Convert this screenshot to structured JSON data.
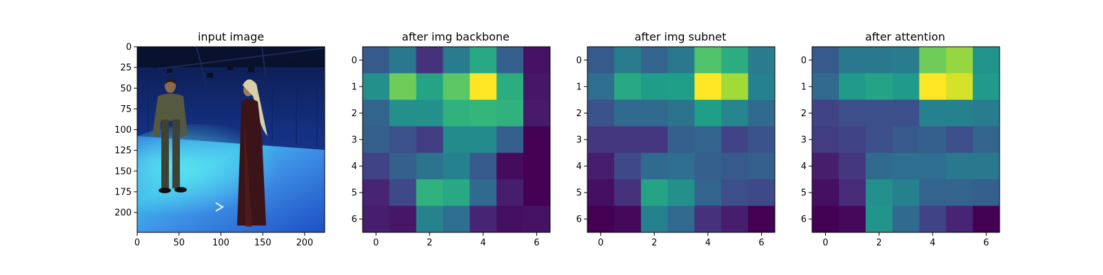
{
  "chart_data": [
    {
      "type": "image",
      "title": "input image",
      "image": "photo-two-people-blue-studio",
      "xticks": [
        0,
        50,
        100,
        150,
        200
      ],
      "yticks": [
        0,
        25,
        50,
        75,
        100,
        125,
        150,
        175,
        200
      ],
      "xlim": [
        0,
        224
      ],
      "ylim": [
        224,
        0
      ]
    },
    {
      "type": "heatmap",
      "title": "after img backbone",
      "colormap": "viridis",
      "xticks": [
        0,
        2,
        4,
        6
      ],
      "yticks": [
        0,
        1,
        2,
        3,
        4,
        5,
        6
      ],
      "values": [
        [
          0.28,
          0.4,
          0.14,
          0.42,
          0.6,
          0.3,
          0.05
        ],
        [
          0.5,
          0.78,
          0.58,
          0.74,
          1.0,
          0.62,
          0.06
        ],
        [
          0.32,
          0.5,
          0.5,
          0.64,
          0.66,
          0.64,
          0.07
        ],
        [
          0.3,
          0.25,
          0.18,
          0.48,
          0.48,
          0.3,
          0.0
        ],
        [
          0.2,
          0.3,
          0.38,
          0.44,
          0.28,
          0.03,
          0.0
        ],
        [
          0.1,
          0.22,
          0.64,
          0.6,
          0.34,
          0.08,
          0.0
        ],
        [
          0.08,
          0.06,
          0.45,
          0.36,
          0.1,
          0.04,
          0.05
        ]
      ]
    },
    {
      "type": "heatmap",
      "title": "after img subnet",
      "colormap": "viridis",
      "xticks": [
        0,
        2,
        4,
        6
      ],
      "yticks": [
        0,
        1,
        2,
        3,
        4,
        5,
        6
      ],
      "values": [
        [
          0.28,
          0.42,
          0.32,
          0.4,
          0.72,
          0.62,
          0.42
        ],
        [
          0.36,
          0.6,
          0.55,
          0.56,
          1.0,
          0.86,
          0.44
        ],
        [
          0.25,
          0.34,
          0.34,
          0.38,
          0.56,
          0.46,
          0.34
        ],
        [
          0.16,
          0.16,
          0.16,
          0.3,
          0.32,
          0.2,
          0.26
        ],
        [
          0.08,
          0.22,
          0.34,
          0.36,
          0.3,
          0.28,
          0.3
        ],
        [
          0.04,
          0.14,
          0.58,
          0.5,
          0.32,
          0.24,
          0.22
        ],
        [
          0.0,
          0.02,
          0.44,
          0.34,
          0.14,
          0.08,
          0.0
        ]
      ]
    },
    {
      "type": "heatmap",
      "title": "after attention",
      "colormap": "viridis",
      "xticks": [
        0,
        2,
        4,
        6
      ],
      "yticks": [
        0,
        1,
        2,
        3,
        4,
        5,
        6
      ],
      "values": [
        [
          0.28,
          0.4,
          0.4,
          0.42,
          0.78,
          0.84,
          0.52
        ],
        [
          0.34,
          0.54,
          0.58,
          0.54,
          1.0,
          0.94,
          0.54
        ],
        [
          0.2,
          0.24,
          0.24,
          0.24,
          0.44,
          0.44,
          0.42
        ],
        [
          0.18,
          0.2,
          0.24,
          0.28,
          0.3,
          0.24,
          0.32
        ],
        [
          0.08,
          0.16,
          0.34,
          0.36,
          0.36,
          0.4,
          0.4
        ],
        [
          0.04,
          0.12,
          0.5,
          0.44,
          0.32,
          0.32,
          0.3
        ],
        [
          0.0,
          0.02,
          0.52,
          0.34,
          0.2,
          0.1,
          0.0
        ]
      ]
    }
  ]
}
